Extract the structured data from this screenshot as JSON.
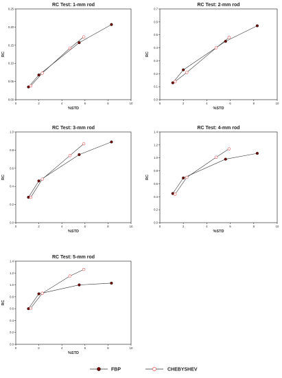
{
  "chart_data": [
    {
      "type": "line",
      "title": "RC Test: 1-mm rod",
      "xlabel": "%STD",
      "ylabel": "RC",
      "xlim": [
        0,
        10
      ],
      "ylim": [
        0,
        0.25
      ],
      "xticks": [
        "0",
        "2",
        "4",
        "6",
        "8",
        "10"
      ],
      "yticks": [
        "0.00",
        "0.05",
        "0.10",
        "0.15",
        "0.20",
        "0.25"
      ],
      "series": [
        {
          "name": "FBP",
          "x": [
            1.1,
            2.0,
            5.5,
            8.3
          ],
          "y": [
            0.035,
            0.068,
            0.157,
            0.207
          ]
        },
        {
          "name": "CHEBYSHEV",
          "x": [
            1.3,
            2.3,
            4.7,
            5.9
          ],
          "y": [
            0.038,
            0.073,
            0.142,
            0.173
          ]
        }
      ]
    },
    {
      "type": "line",
      "title": "RC Test: 2-mm rod",
      "xlabel": "%STD",
      "ylabel": "RC",
      "xlim": [
        0,
        10
      ],
      "ylim": [
        0,
        0.7
      ],
      "xticks": [
        "0",
        "2",
        "4",
        "6",
        "8",
        "10"
      ],
      "yticks": [
        "0.0",
        "0.1",
        "0.2",
        "0.3",
        "0.4",
        "0.5",
        "0.6",
        "0.7"
      ],
      "series": [
        {
          "name": "FBP",
          "x": [
            1.1,
            2.0,
            5.6,
            8.3
          ],
          "y": [
            0.13,
            0.23,
            0.45,
            0.57
          ]
        },
        {
          "name": "CHEBYSHEV",
          "x": [
            1.3,
            2.3,
            4.8,
            5.9
          ],
          "y": [
            0.14,
            0.21,
            0.4,
            0.48
          ]
        }
      ]
    },
    {
      "type": "line",
      "title": "RC Test: 3-mm rod",
      "xlabel": "%STD",
      "ylabel": "RC",
      "xlim": [
        0,
        10
      ],
      "ylim": [
        0,
        1.0
      ],
      "xticks": [
        "0",
        "2",
        "4",
        "6",
        "8",
        "10"
      ],
      "yticks": [
        "0.0",
        "0.2",
        "0.4",
        "0.6",
        "0.8",
        "1.0"
      ],
      "series": [
        {
          "name": "FBP",
          "x": [
            1.1,
            2.0,
            5.5,
            8.3
          ],
          "y": [
            0.28,
            0.46,
            0.75,
            0.89
          ]
        },
        {
          "name": "CHEBYSHEV",
          "x": [
            1.3,
            2.3,
            4.7,
            5.9
          ],
          "y": [
            0.28,
            0.48,
            0.74,
            0.87
          ]
        }
      ]
    },
    {
      "type": "line",
      "title": "RC Test: 4-mm rod",
      "xlabel": "%STD",
      "ylabel": "RC",
      "xlim": [
        0,
        10
      ],
      "ylim": [
        0,
        1.4
      ],
      "xticks": [
        "0",
        "2",
        "4",
        "6",
        "8",
        "10"
      ],
      "yticks": [
        "0.0",
        "0.2",
        "0.4",
        "0.6",
        "0.8",
        "1.0",
        "1.2",
        "1.4"
      ],
      "series": [
        {
          "name": "FBP",
          "x": [
            1.1,
            2.0,
            5.6,
            8.3
          ],
          "y": [
            0.45,
            0.69,
            0.98,
            1.07
          ]
        },
        {
          "name": "CHEBYSHEV",
          "x": [
            1.3,
            2.3,
            4.8,
            5.9
          ],
          "y": [
            0.44,
            0.7,
            1.01,
            1.14
          ]
        }
      ]
    },
    {
      "type": "line",
      "title": "RC Test: 5-mm rod",
      "xlabel": "%STD",
      "ylabel": "RC",
      "xlim": [
        0,
        10
      ],
      "ylim": [
        0,
        1.4
      ],
      "xticks": [
        "0",
        "2",
        "4",
        "6",
        "8",
        "10"
      ],
      "yticks": [
        "0.0",
        "0.2",
        "0.4",
        "0.6",
        "0.8",
        "1.0",
        "1.2",
        "1.4"
      ],
      "series": [
        {
          "name": "FBP",
          "x": [
            1.1,
            2.0,
            5.5,
            8.3
          ],
          "y": [
            0.6,
            0.85,
            1.0,
            1.03
          ]
        },
        {
          "name": "CHEBYSHEV",
          "x": [
            1.3,
            2.3,
            4.7,
            5.9
          ],
          "y": [
            0.61,
            0.86,
            1.15,
            1.26
          ]
        }
      ]
    }
  ],
  "legend": {
    "placement": "bottom",
    "entries": [
      {
        "label": "FBP",
        "marker": "filled-circle",
        "color": "#6b0000"
      },
      {
        "label": "CHEBYSHEV",
        "marker": "open-circle",
        "color": "#e05050"
      }
    ]
  },
  "colors": {
    "fbp_marker": "#6b0000",
    "cheb_marker": "#e05050",
    "line": "#333333"
  }
}
